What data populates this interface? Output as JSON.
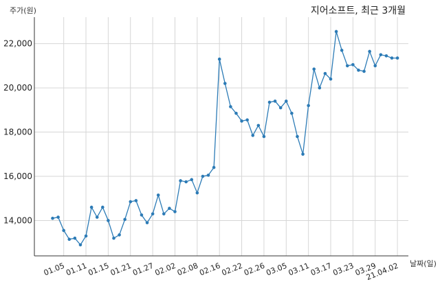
{
  "chart_data": {
    "type": "line",
    "title": "지어소프트, 최근 3개월",
    "ylabel": "주가(원)",
    "xlabel": "날짜(일)",
    "ylim": [
      12400,
      23200
    ],
    "yticks": [
      14000,
      16000,
      18000,
      20000,
      22000
    ],
    "ytick_labels": [
      "14,000",
      "16,000",
      "18,000",
      "20,000",
      "22,000"
    ],
    "xtick_labels": [
      "01.05",
      "01.11",
      "01.15",
      "01.21",
      "01.27",
      "02.02",
      "02.08",
      "02.16",
      "02.22",
      "02.26",
      "03.05",
      "03.11",
      "03.17",
      "03.23",
      "03.29",
      "21.04.02"
    ],
    "xtick_indices": [
      2,
      6,
      10,
      14,
      18,
      22,
      26,
      30,
      34,
      38,
      42,
      46,
      50,
      54,
      58,
      62
    ],
    "grid": true,
    "color": "#2c7bb6",
    "series": [
      {
        "values": [
          14100,
          14150,
          13550,
          13150,
          13200,
          12900,
          13300,
          14600,
          14150,
          14600,
          14000,
          13200,
          13350,
          14050,
          14850,
          14900,
          14250,
          13900,
          14300,
          15150,
          14300,
          14550,
          14400,
          15800,
          15750,
          15850,
          15250,
          16000,
          16050,
          16400,
          21300,
          20200,
          19150,
          18850,
          18500,
          18550,
          17850,
          18300,
          17800,
          19350,
          19400,
          19100,
          19400,
          18850,
          17800,
          17000,
          19200,
          20850,
          20000,
          20650,
          20400,
          22550,
          21700,
          21000,
          21050,
          20800,
          20750,
          21650,
          21000,
          21500,
          21450,
          21350,
          21350
        ]
      }
    ]
  }
}
